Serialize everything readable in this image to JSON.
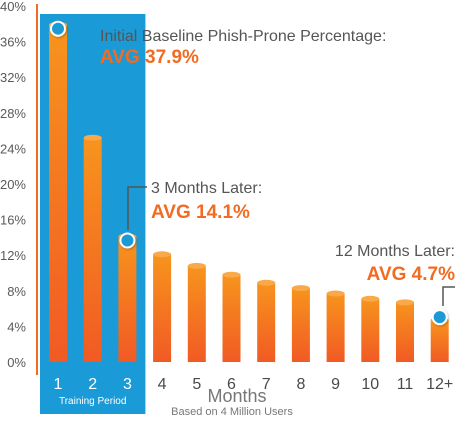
{
  "chart_data": {
    "type": "bar",
    "categories": [
      "1",
      "2",
      "3",
      "4",
      "5",
      "6",
      "7",
      "8",
      "9",
      "10",
      "11",
      "12+"
    ],
    "values": [
      37.9,
      25.2,
      14.1,
      12.1,
      10.8,
      9.8,
      8.9,
      8.3,
      7.7,
      7.1,
      6.7,
      4.7
    ],
    "ylim": [
      0,
      40
    ],
    "yticks": [
      "0%",
      "4%",
      "8%",
      "12%",
      "16%",
      "20%",
      "24%",
      "28%",
      "32%",
      "36%",
      "40%"
    ],
    "xlabel": "Months",
    "xlabel_sub": "Based on 4 Million Users",
    "highlight_label": "Training Period",
    "highlight_categories": [
      "1",
      "2",
      "3"
    ],
    "annotations": [
      {
        "category": "1",
        "label": "Initial Baseline Phish-Prone Percentage:",
        "value_text": "AVG 37.9%"
      },
      {
        "category": "3",
        "label": "3 Months Later:",
        "value_text": "AVG 14.1%"
      },
      {
        "category": "12+",
        "label": "12 Months Later:",
        "value_text": "AVG 4.7%"
      }
    ],
    "colors": {
      "bar_top": "#f7941d",
      "bar_bottom": "#f15a24",
      "highlight": "#1a9ad6",
      "axis": "#f26b21",
      "value_text": "#f26b21"
    }
  }
}
